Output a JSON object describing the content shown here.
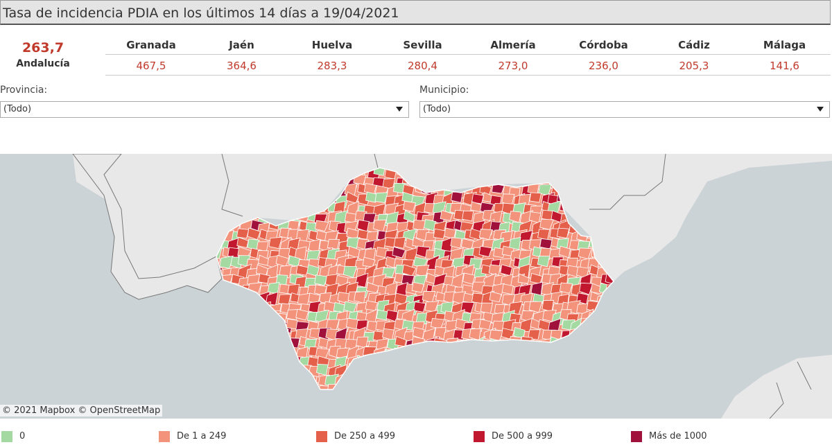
{
  "header": {
    "title": "Tasa de incidencia PDIA en los últimos 14 días a 19/04/2021"
  },
  "summary": {
    "total": {
      "value": "263,7",
      "label": "Andalucía"
    },
    "provinces": [
      {
        "name": "Granada",
        "value": "467,5"
      },
      {
        "name": "Jaén",
        "value": "364,6"
      },
      {
        "name": "Huelva",
        "value": "283,3"
      },
      {
        "name": "Sevilla",
        "value": "280,4"
      },
      {
        "name": "Almería",
        "value": "273,0"
      },
      {
        "name": "Córdoba",
        "value": "236,0"
      },
      {
        "name": "Cádiz",
        "value": "205,3"
      },
      {
        "name": "Málaga",
        "value": "141,6"
      }
    ]
  },
  "filters": [
    {
      "label": "Provincia:",
      "value": "(Todo)"
    },
    {
      "label": "Municipio:",
      "value": "(Todo)"
    }
  ],
  "map": {
    "attribution": "© 2021 Mapbox  © OpenStreetMap"
  },
  "legend": [
    {
      "label": "0",
      "color": "#a5d9a2"
    },
    {
      "label": "De 1 a 249",
      "color": "#f4937c"
    },
    {
      "label": "De 250 a 499",
      "color": "#e5604a"
    },
    {
      "label": "De 500 a 999",
      "color": "#c1182f"
    },
    {
      "label": "Más de 1000",
      "color": "#a0113b"
    }
  ]
}
